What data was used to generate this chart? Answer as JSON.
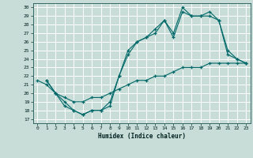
{
  "xlabel": "Humidex (Indice chaleur)",
  "xlim": [
    -0.5,
    23.5
  ],
  "ylim": [
    16.5,
    30.5
  ],
  "yticks": [
    17,
    18,
    19,
    20,
    21,
    22,
    23,
    24,
    25,
    26,
    27,
    28,
    29,
    30
  ],
  "xticks": [
    0,
    1,
    2,
    3,
    4,
    5,
    6,
    7,
    8,
    9,
    10,
    11,
    12,
    13,
    14,
    15,
    16,
    17,
    18,
    19,
    20,
    21,
    22,
    23
  ],
  "bg_color": "#c8ddd8",
  "grid_color": "#b0ccc8",
  "line_color": "#006868",
  "line1_x": [
    1,
    2,
    3,
    4,
    5,
    6,
    7,
    8,
    9,
    10,
    11,
    12,
    13,
    14,
    15,
    16,
    17,
    18,
    19,
    20,
    21,
    22,
    23
  ],
  "line1_y": [
    21.5,
    20.0,
    19.0,
    18.0,
    17.5,
    18.0,
    18.0,
    19.0,
    22.0,
    24.5,
    26.0,
    26.5,
    27.5,
    28.5,
    27.0,
    30.0,
    29.0,
    29.0,
    29.0,
    28.5,
    25.0,
    24.0,
    23.5
  ],
  "line2_x": [
    1,
    2,
    3,
    4,
    5,
    6,
    7,
    8,
    9,
    10,
    11,
    12,
    13,
    14,
    15,
    16,
    17,
    18,
    19,
    20,
    21,
    22,
    23
  ],
  "line2_y": [
    21.5,
    20.0,
    18.5,
    18.0,
    17.5,
    18.0,
    18.0,
    18.5,
    22.0,
    25.0,
    26.0,
    26.5,
    27.0,
    28.5,
    26.5,
    29.5,
    29.0,
    29.0,
    29.5,
    28.5,
    24.5,
    24.0,
    23.5
  ],
  "line3_x": [
    0,
    1,
    2,
    3,
    4,
    5,
    6,
    7,
    8,
    9,
    10,
    11,
    12,
    13,
    14,
    15,
    16,
    17,
    18,
    19,
    20,
    21,
    22,
    23
  ],
  "line3_y": [
    21.5,
    21.0,
    20.0,
    19.5,
    19.0,
    19.0,
    19.5,
    19.5,
    20.0,
    20.5,
    21.0,
    21.5,
    21.5,
    22.0,
    22.0,
    22.5,
    23.0,
    23.0,
    23.0,
    23.5,
    23.5,
    23.5,
    23.5,
    23.5
  ]
}
